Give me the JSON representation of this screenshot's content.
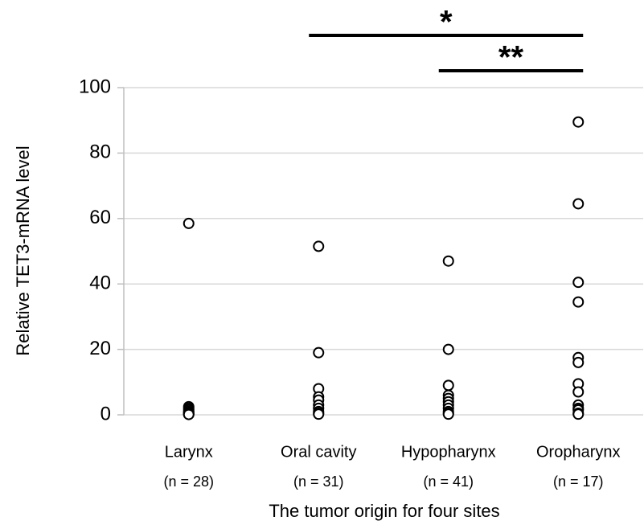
{
  "chart_data": {
    "type": "strip",
    "y_label": "Relative TET3-mRNA  level",
    "x_label": "The tumor origin for four sites",
    "categories": [
      "Larynx",
      "Oral cavity",
      "Hypopharynx",
      "Oropharynx"
    ],
    "category_notes": [
      "(n = 28)",
      "(n = 31)",
      "(n = 41)",
      "(n = 17)"
    ],
    "points": [
      [
        58.5,
        2.5,
        2,
        1.5,
        1,
        0.8,
        0.5,
        0.3,
        0.2,
        0.1
      ],
      [
        51.5,
        19,
        8,
        5.5,
        4.5,
        3,
        2,
        1,
        0.5,
        0.2
      ],
      [
        47,
        20,
        9,
        6,
        5,
        4,
        3,
        2,
        1,
        0.5,
        0.2
      ],
      [
        89.5,
        64.5,
        40.5,
        34.5,
        17.5,
        16,
        9.5,
        7,
        3,
        2,
        1.5,
        0.5,
        0.2
      ]
    ],
    "ylim": [
      0,
      100
    ],
    "yticks": [
      0,
      20,
      40,
      60,
      80,
      100
    ],
    "grid": true,
    "marker_color": "#000000",
    "significance": [
      {
        "label": "*",
        "groups": [
          1,
          3
        ]
      },
      {
        "label": "**",
        "groups": [
          2,
          3
        ]
      }
    ]
  }
}
